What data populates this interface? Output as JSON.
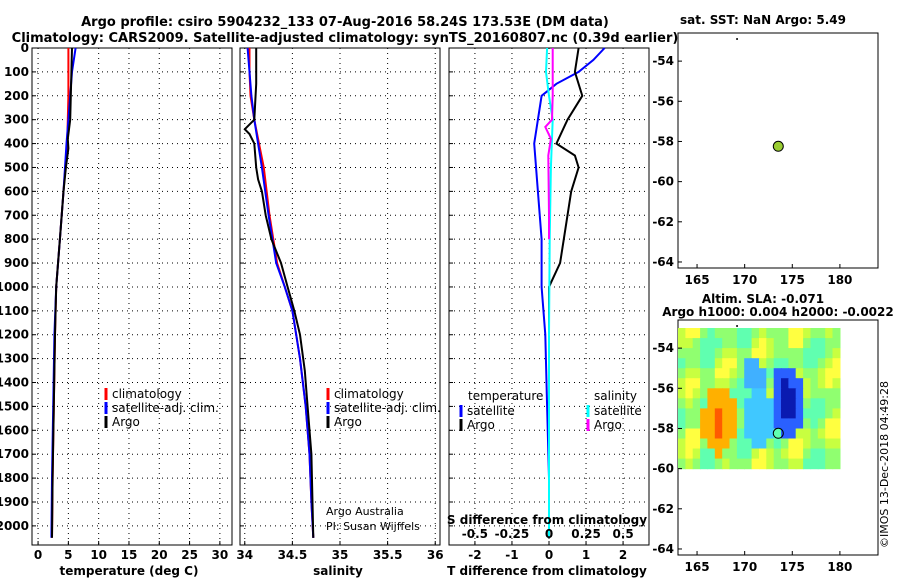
{
  "header": {
    "line1": "Argo profile: csiro 5904232_133 07-Aug-2016 58.24S 173.53E (DM data)",
    "line2": "Climatology: CARS2009. Satellite-adjusted climatology: synTS_20160807.nc (0.39d earlier)"
  },
  "chart_data": [
    {
      "type": "line",
      "id": "temperature",
      "xlabel": "temperature (deg C)",
      "xlim": [
        -1,
        32
      ],
      "ylim": [
        2080,
        0
      ],
      "xticks": [
        0,
        5,
        10,
        15,
        20,
        25,
        30
      ],
      "xtick_labels": [
        "0",
        "5",
        "10",
        "15",
        "20",
        "25",
        "30"
      ],
      "legend": [
        "climatology",
        "satellite-adj. clim.",
        "Argo"
      ],
      "series": [
        {
          "name": "climatology",
          "color": "#ff0000",
          "points": [
            [
              5.0,
              0
            ],
            [
              5.0,
              200
            ],
            [
              4.8,
              400
            ],
            [
              4.2,
              600
            ],
            [
              3.6,
              800
            ],
            [
              3.0,
              1000
            ],
            [
              2.8,
              1200
            ],
            [
              2.6,
              1500
            ],
            [
              2.4,
              1800
            ],
            [
              2.3,
              2050
            ]
          ]
        },
        {
          "name": "satellite-adj. clim.",
          "color": "#0000ff",
          "points": [
            [
              6.2,
              0
            ],
            [
              5.6,
              100
            ],
            [
              5.3,
              200
            ],
            [
              5.0,
              300
            ],
            [
              4.7,
              400
            ],
            [
              4.2,
              600
            ],
            [
              3.6,
              800
            ],
            [
              3.0,
              1000
            ],
            [
              2.7,
              1200
            ],
            [
              2.5,
              1500
            ],
            [
              2.3,
              1800
            ],
            [
              2.2,
              2050
            ]
          ]
        },
        {
          "name": "Argo",
          "color": "#000000",
          "points": [
            [
              5.6,
              0
            ],
            [
              5.5,
              100
            ],
            [
              5.4,
              200
            ],
            [
              5.3,
              300
            ],
            [
              4.9,
              380
            ],
            [
              5.0,
              420
            ],
            [
              4.6,
              500
            ],
            [
              4.2,
              600
            ],
            [
              3.6,
              800
            ],
            [
              3.0,
              1000
            ],
            [
              2.8,
              1200
            ],
            [
              2.6,
              1500
            ],
            [
              2.4,
              1800
            ],
            [
              2.3,
              2050
            ]
          ]
        }
      ]
    },
    {
      "type": "line",
      "id": "salinity",
      "xlabel": "salinity",
      "xlim": [
        33.95,
        36.05
      ],
      "ylim": [
        2080,
        0
      ],
      "xticks": [
        34,
        34.5,
        35,
        35.5,
        36
      ],
      "xtick_labels": [
        "34",
        "34.5",
        "35",
        "35.5",
        "36"
      ],
      "legend": [
        "climatology",
        "satellite-adj. clim.",
        "Argo"
      ],
      "credit": [
        "Argo Australia",
        "PI: Susan Wijffels"
      ],
      "series": [
        {
          "name": "climatology",
          "color": "#ff0000",
          "points": [
            [
              34.05,
              0
            ],
            [
              34.05,
              100
            ],
            [
              34.06,
              200
            ],
            [
              34.1,
              300
            ],
            [
              34.15,
              400
            ],
            [
              34.2,
              500
            ],
            [
              34.26,
              700
            ],
            [
              34.34,
              900
            ],
            [
              34.42,
              1000
            ],
            [
              34.5,
              1100
            ],
            [
              34.58,
              1300
            ],
            [
              34.64,
              1500
            ],
            [
              34.68,
              1700
            ],
            [
              34.7,
              1900
            ],
            [
              34.72,
              2050
            ]
          ]
        },
        {
          "name": "satellite-adj. clim.",
          "color": "#0000ff",
          "points": [
            [
              34.03,
              0
            ],
            [
              34.05,
              100
            ],
            [
              34.07,
              200
            ],
            [
              34.1,
              300
            ],
            [
              34.14,
              400
            ],
            [
              34.18,
              500
            ],
            [
              34.25,
              700
            ],
            [
              34.33,
              900
            ],
            [
              34.42,
              1000
            ],
            [
              34.5,
              1100
            ],
            [
              34.58,
              1300
            ],
            [
              34.64,
              1500
            ],
            [
              34.68,
              1700
            ],
            [
              34.7,
              1900
            ],
            [
              34.72,
              2050
            ]
          ]
        },
        {
          "name": "Argo",
          "color": "#000000",
          "points": [
            [
              34.12,
              0
            ],
            [
              34.12,
              150
            ],
            [
              34.1,
              300
            ],
            [
              34.0,
              340
            ],
            [
              34.05,
              360
            ],
            [
              34.1,
              400
            ],
            [
              34.12,
              500
            ],
            [
              34.14,
              550
            ],
            [
              34.18,
              600
            ],
            [
              34.22,
              700
            ],
            [
              34.28,
              800
            ],
            [
              34.38,
              900
            ],
            [
              34.45,
              1000
            ],
            [
              34.52,
              1100
            ],
            [
              34.58,
              1200
            ],
            [
              34.63,
              1350
            ],
            [
              34.66,
              1500
            ],
            [
              34.7,
              1700
            ],
            [
              34.72,
              2050
            ]
          ]
        }
      ]
    },
    {
      "type": "line",
      "id": "difference",
      "xlabel": "T difference from climatology",
      "sublabel": "S difference from climatology",
      "xlim": [
        -2.7,
        2.7
      ],
      "ylim": [
        2080,
        0
      ],
      "xticks": [
        -2,
        -1,
        0,
        1,
        2
      ],
      "xtick_labels": [
        "-2",
        "-1",
        "0",
        "1",
        "2"
      ],
      "s_tick_labels": [
        "-0.5",
        "-0.25",
        "0",
        "0.25",
        "0.5"
      ],
      "legend_left_title": "temperature",
      "legend_right_title": "salinity",
      "legend_left": [
        "satellite",
        "Argo"
      ],
      "legend_right": [
        "satellite",
        "Argo"
      ],
      "series": [
        {
          "name": "T satellite",
          "color": "#0000ff",
          "points": [
            [
              1.5,
              0
            ],
            [
              1.2,
              50
            ],
            [
              0.8,
              100
            ],
            [
              0.2,
              150
            ],
            [
              -0.2,
              200
            ],
            [
              -0.3,
              300
            ],
            [
              -0.4,
              400
            ],
            [
              -0.3,
              600
            ],
            [
              -0.2,
              800
            ],
            [
              -0.2,
              1000
            ],
            [
              -0.1,
              1200
            ],
            [
              -0.05,
              1500
            ],
            [
              0.0,
              1800
            ],
            [
              0.0,
              2050
            ]
          ]
        },
        {
          "name": "T Argo",
          "color": "#000000",
          "points": [
            [
              0.8,
              0
            ],
            [
              0.7,
              100
            ],
            [
              0.9,
              200
            ],
            [
              0.5,
              300
            ],
            [
              0.2,
              400
            ],
            [
              0.7,
              450
            ],
            [
              0.8,
              500
            ],
            [
              0.6,
              600
            ],
            [
              0.5,
              700
            ],
            [
              0.4,
              800
            ],
            [
              0.3,
              900
            ],
            [
              0.0,
              1000
            ],
            [
              0.0,
              1200
            ],
            [
              0.0,
              1500
            ],
            [
              0.0,
              2050
            ]
          ]
        },
        {
          "name": "S satellite",
          "color": "#00ffff",
          "points": [
            [
              -0.05,
              0
            ],
            [
              -0.08,
              100
            ],
            [
              0.0,
              200
            ],
            [
              0.1,
              300
            ],
            [
              0.05,
              500
            ],
            [
              0.02,
              800
            ],
            [
              0.0,
              1200
            ],
            [
              0.0,
              2050
            ]
          ]
        },
        {
          "name": "S Argo",
          "color": "#ff00ff",
          "points": [
            [
              0.1,
              0
            ],
            [
              0.1,
              200
            ],
            [
              0.08,
              300
            ],
            [
              -0.1,
              330
            ],
            [
              0.05,
              380
            ],
            [
              -0.02,
              450
            ],
            [
              0.0,
              700
            ],
            [
              0.0,
              800
            ]
          ]
        }
      ]
    },
    {
      "type": "scatter",
      "id": "sst-map",
      "title": "sat. SST: NaN Argo: 5.49",
      "xlim": [
        163,
        184
      ],
      "ylim": [
        -64.3,
        -52.6
      ],
      "xticks": [
        165,
        170,
        175,
        180
      ],
      "yticks": [
        -54,
        -56,
        -58,
        -60,
        -62,
        -64
      ],
      "points": [
        {
          "x": 173.53,
          "y": -58.24,
          "color": "#9acd32"
        }
      ]
    },
    {
      "type": "heatmap",
      "id": "sla-map",
      "title": "Altim. SLA: -0.071",
      "subtitle": "Argo h1000: 0.004 h2000: -0.0022",
      "xlim": [
        163,
        184
      ],
      "ylim": [
        -64.3,
        -52.6
      ],
      "xticks": [
        165,
        170,
        175,
        180
      ],
      "yticks": [
        -54,
        -56,
        -58,
        -60,
        -62,
        -64
      ],
      "field_extent": {
        "lon": [
          163,
          180
        ],
        "lat": [
          -60,
          -53
        ]
      },
      "points": [
        {
          "x": 173.53,
          "y": -58.24
        }
      ]
    }
  ],
  "yaxis": {
    "ticks": [
      0,
      100,
      200,
      300,
      400,
      500,
      600,
      700,
      800,
      900,
      1000,
      1100,
      1200,
      1300,
      1400,
      1500,
      1600,
      1700,
      1800,
      1900,
      2000
    ],
    "labels": [
      "0",
      "100",
      "200",
      "300",
      "400",
      "500",
      "600",
      "700",
      "800",
      "900",
      "1000",
      "1100",
      "1200",
      "1300",
      "1400",
      "1500",
      "1600",
      "1700",
      "1800",
      "1900",
      "2000"
    ]
  },
  "watermark": "©IMOS 13-Dec-2018 04:49:28"
}
